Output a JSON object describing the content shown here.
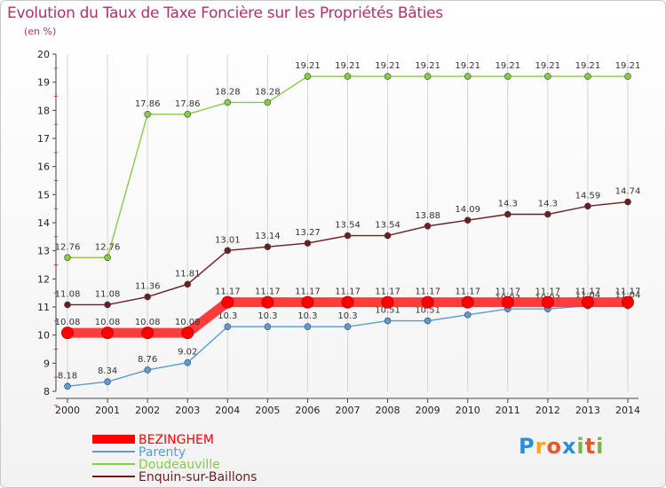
{
  "chart_data": {
    "type": "line",
    "title": "Evolution du Taux de Taxe Foncière sur les Propriétés Bâties",
    "unit": "(en %)",
    "x": [
      "2000",
      "2001",
      "2002",
      "2003",
      "2004",
      "2005",
      "2006",
      "2007",
      "2008",
      "2009",
      "2010",
      "2011",
      "2012",
      "2013",
      "2014"
    ],
    "ylim": [
      8,
      20
    ],
    "yticks": [
      8,
      9,
      10,
      11,
      12,
      13,
      14,
      15,
      16,
      17,
      18,
      19,
      20
    ],
    "grid": "vertical",
    "legend_position": "bottom-left",
    "series": [
      {
        "name": "Doudeauville",
        "color": "#88cc44",
        "values": [
          12.76,
          12.76,
          17.86,
          17.86,
          18.28,
          18.28,
          19.21,
          19.21,
          19.21,
          19.21,
          19.21,
          19.21,
          19.21,
          19.21,
          19.21
        ]
      },
      {
        "name": "Enquin-sur-Baillons",
        "color": "#6b1d24",
        "values": [
          11.08,
          11.08,
          11.36,
          11.81,
          13.01,
          13.14,
          13.27,
          13.54,
          13.54,
          13.88,
          14.09,
          14.3,
          14.3,
          14.59,
          14.74
        ],
        "labels": [
          "11.08",
          "11.08",
          "11.36",
          "11.81",
          "13.01",
          "13.14",
          "13.27",
          "13.54",
          "13.54",
          "13.88",
          "14.09",
          "14.3",
          "14.3",
          "14.59",
          "14.74"
        ]
      },
      {
        "name": "Parenty",
        "color": "#5b9bd5",
        "values": [
          8.18,
          8.34,
          8.76,
          9.02,
          10.3,
          10.3,
          10.3,
          10.3,
          10.51,
          10.51,
          10.72,
          10.93,
          10.93,
          11.04,
          11.04
        ],
        "labels": [
          "8.18",
          "8.34",
          "8.76",
          "9.02",
          "10.3",
          "10.3",
          "10.3",
          "10.3",
          "10.51",
          "10.51",
          "10.72",
          "10.93",
          "10.93",
          "11.04",
          "11.04"
        ]
      },
      {
        "name": "BEZINGHEM",
        "color": "#ff0000",
        "values": [
          10.08,
          10.08,
          10.08,
          10.08,
          11.17,
          11.17,
          11.17,
          11.17,
          11.17,
          11.17,
          11.17,
          11.17,
          11.17,
          11.17,
          11.17
        ],
        "labels": [
          "10.08",
          "10.08",
          "10.08",
          "10.08",
          "11.17",
          "11.17",
          "11.17",
          "11.17",
          "11.17",
          "11.17",
          "11.17",
          "11.17",
          "11.17",
          "11.17",
          "11.17"
        ]
      }
    ],
    "legend": [
      "BEZINGHEM",
      "Parenty",
      "Doudeauville",
      "Enquin-sur-Baillons"
    ]
  },
  "logo": {
    "letters": [
      "P",
      "r",
      "o",
      "x",
      "i",
      "t",
      "i"
    ],
    "colors": [
      "#2a8fd6",
      "#f5a623",
      "#e8572a",
      "#2a8fd6",
      "#7cb342",
      "#e8572a",
      "#7cb342"
    ]
  }
}
